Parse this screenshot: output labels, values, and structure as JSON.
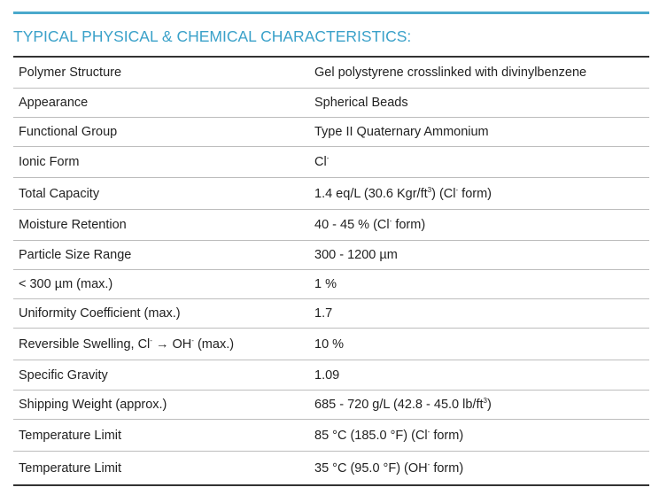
{
  "heading": "TYPICAL PHYSICAL & CHEMICAL CHARACTERISTICS:",
  "rows": [
    {
      "property": "Polymer Structure",
      "value": "Gel polystyrene crosslinked with divinylbenzene"
    },
    {
      "property": "Appearance",
      "value": "Spherical Beads"
    },
    {
      "property": "Functional Group",
      "value": "Type II Quaternary Ammonium"
    },
    {
      "property": "Ionic Form",
      "value": "Cl",
      "value_sup": "-"
    },
    {
      "property": "Total Capacity",
      "value_a": "1.4 eq/L (30.6 Kgr/ft",
      "value_sup1": "3",
      "value_b": ") (Cl",
      "value_sup2": "-",
      "value_c": " form)"
    },
    {
      "property": "Moisture Retention",
      "value_a": "40 - 45 % (Cl",
      "value_sup": "-",
      "value_b": " form)"
    },
    {
      "property": "Particle Size Range",
      "value": "300 - 1200 µm"
    },
    {
      "property": "< 300 µm (max.)",
      "value": "1 %"
    },
    {
      "property": "Uniformity Coefficient (max.)",
      "value": "1.7"
    },
    {
      "property_a": "Reversible Swelling, Cl",
      "property_sup1": "-",
      "property_b": " → OH",
      "property_sup2": "-",
      "property_c": " (max.)",
      "value": "10 %"
    },
    {
      "property": "Specific Gravity",
      "value": "1.09"
    },
    {
      "property": "Shipping Weight (approx.)",
      "value_a": "685 - 720 g/L (42.8 - 45.0 lb/ft",
      "value_sup": "3",
      "value_b": ")"
    },
    {
      "property": "Temperature Limit",
      "value_a": "85 °C (185.0 °F) (Cl",
      "value_sup": "-",
      "value_b": " form)"
    },
    {
      "property": "Temperature Limit",
      "value_a": "35 °C (95.0 °F) (OH",
      "value_sup": "-",
      "value_b": " form)"
    }
  ],
  "colors": {
    "accent": "#3aa1c9",
    "rule_dark": "#333333",
    "rule_light": "#bdbdbd"
  }
}
